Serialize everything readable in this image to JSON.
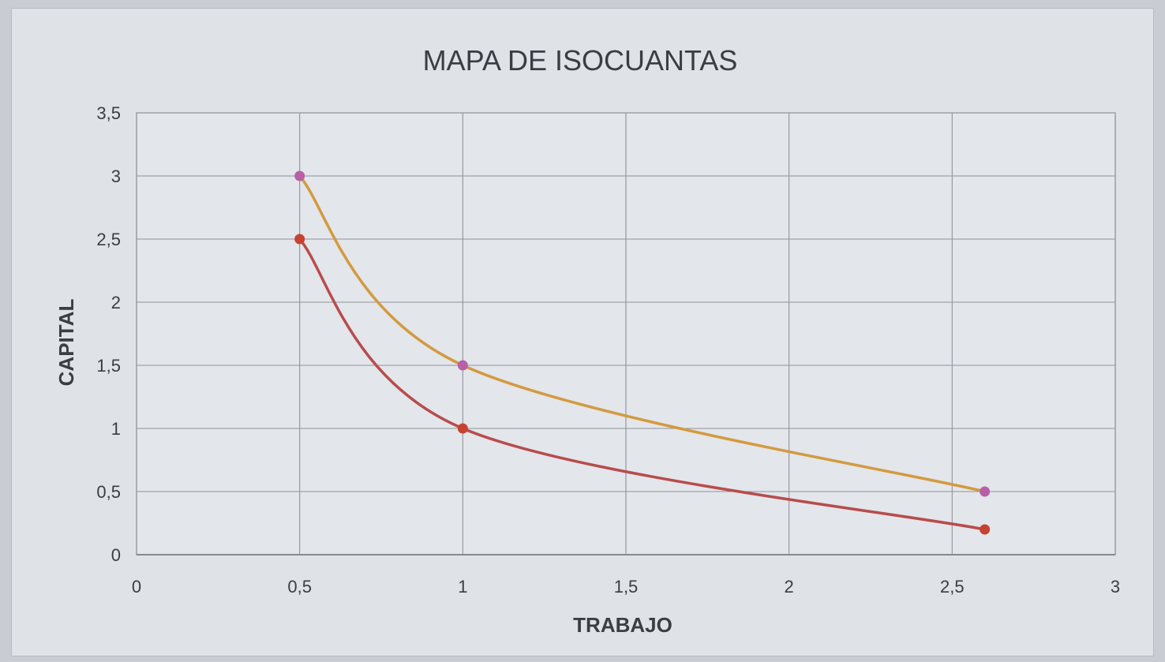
{
  "chart_data": {
    "type": "scatter",
    "title": "MAPA DE ISOCUANTAS",
    "xlabel": "TRABAJO",
    "ylabel": "CAPITAL",
    "xlim": [
      0,
      3
    ],
    "ylim": [
      0,
      3.5
    ],
    "xticks": [
      0,
      0.5,
      1,
      1.5,
      2,
      2.5,
      3
    ],
    "yticks": [
      0,
      0.5,
      1,
      1.5,
      2,
      2.5,
      3,
      3.5
    ],
    "xtick_labels": [
      "0",
      "0,5",
      "1",
      "1,5",
      "2",
      "2,5",
      "3"
    ],
    "ytick_labels": [
      "0",
      "0,5",
      "1",
      "1,5",
      "2",
      "2,5",
      "3",
      "3,5"
    ],
    "grid": true,
    "smooth_lines": true,
    "series": [
      {
        "color": "#d39a3f",
        "marker_color": "#b85fa8",
        "x": [
          0.5,
          1,
          2.6
        ],
        "y": [
          3,
          1.5,
          0.5
        ]
      },
      {
        "color": "#b84c4c",
        "marker_color": "#c6442f",
        "x": [
          0.5,
          1,
          2.6
        ],
        "y": [
          2.5,
          1,
          0.2
        ]
      }
    ]
  }
}
